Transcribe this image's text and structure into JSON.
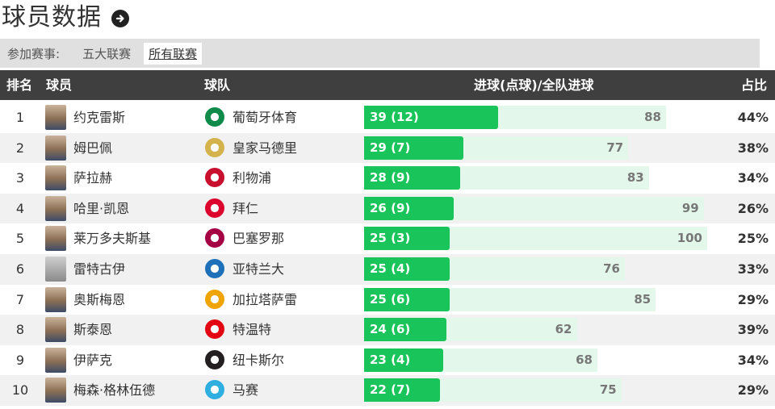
{
  "page": {
    "title": "球员数据"
  },
  "filter": {
    "label": "参加赛事:",
    "options": [
      "五大联赛",
      "所有联赛"
    ],
    "active_index": 1
  },
  "table": {
    "headers": {
      "rank": "排名",
      "player": "球员",
      "team": "球队",
      "goals": "进球(点球)/全队进球",
      "ratio": "占比"
    },
    "rows": [
      {
        "rank": "1",
        "player": "约克雷斯",
        "team": "葡萄牙体育",
        "goals": "39 (12)",
        "goal_count": 39,
        "team_total": "88",
        "team_total_num": 88,
        "ratio": "44%",
        "team_color": "#0e8a4a"
      },
      {
        "rank": "2",
        "player": "姆巴佩",
        "team": "皇家马德里",
        "goals": "29 (7)",
        "goal_count": 29,
        "team_total": "77",
        "team_total_num": 77,
        "ratio": "38%",
        "team_color": "#d4b24c"
      },
      {
        "rank": "3",
        "player": "萨拉赫",
        "team": "利物浦",
        "goals": "28 (9)",
        "goal_count": 28,
        "team_total": "83",
        "team_total_num": 83,
        "ratio": "34%",
        "team_color": "#c8102e"
      },
      {
        "rank": "4",
        "player": "哈里·凯恩",
        "team": "拜仁",
        "goals": "26 (9)",
        "goal_count": 26,
        "team_total": "99",
        "team_total_num": 99,
        "ratio": "26%",
        "team_color": "#dc052d"
      },
      {
        "rank": "5",
        "player": "莱万多夫斯基",
        "team": "巴塞罗那",
        "goals": "25 (3)",
        "goal_count": 25,
        "team_total": "100",
        "team_total_num": 100,
        "ratio": "25%",
        "team_color": "#a50044"
      },
      {
        "rank": "6",
        "player": "雷特古伊",
        "team": "亚特兰大",
        "goals": "25 (4)",
        "goal_count": 25,
        "team_total": "76",
        "team_total_num": 76,
        "ratio": "33%",
        "team_color": "#1e71b8"
      },
      {
        "rank": "7",
        "player": "奥斯梅恩",
        "team": "加拉塔萨雷",
        "goals": "25 (6)",
        "goal_count": 25,
        "team_total": "85",
        "team_total_num": 85,
        "ratio": "29%",
        "team_color": "#f0a400"
      },
      {
        "rank": "8",
        "player": "斯泰恩",
        "team": "特温特",
        "goals": "24 (6)",
        "goal_count": 24,
        "team_total": "62",
        "team_total_num": 62,
        "ratio": "39%",
        "team_color": "#e30613"
      },
      {
        "rank": "9",
        "player": "伊萨克",
        "team": "纽卡斯尔",
        "goals": "23 (4)",
        "goal_count": 23,
        "team_total": "68",
        "team_total_num": 68,
        "ratio": "34%",
        "team_color": "#241f20"
      },
      {
        "rank": "10",
        "player": "梅森·格林伍德",
        "team": "马赛",
        "goals": "22 (7)",
        "goal_count": 22,
        "team_total": "75",
        "team_total_num": 75,
        "ratio": "29%",
        "team_color": "#2faee0"
      }
    ]
  },
  "colors": {
    "header_bg": "#3f3f3f",
    "bar_fill": "#19c55a",
    "bar_track": "#e3f8ea",
    "row_alt": "#f1f1f1"
  }
}
